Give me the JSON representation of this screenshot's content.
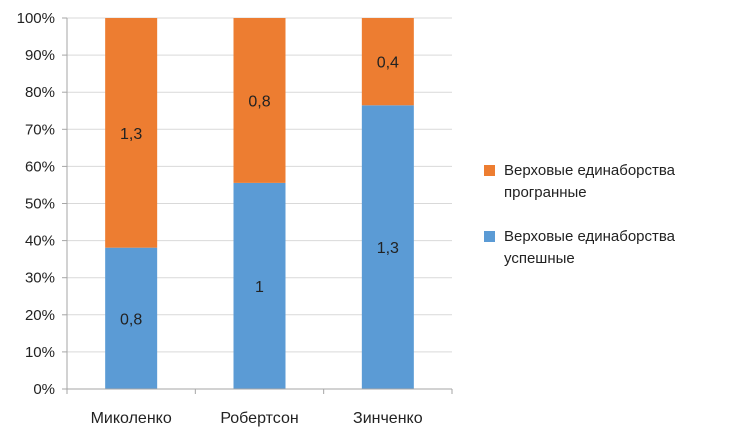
{
  "chart_data": {
    "type": "bar",
    "stacked": true,
    "normalized": true,
    "categories": [
      "Миколенко",
      "Робертсон",
      "Зинченко"
    ],
    "series": [
      {
        "name": "Верховые единаборства успешные",
        "values": [
          0.8,
          1,
          1.3
        ],
        "labels": [
          "0,8",
          "1",
          "1,3"
        ],
        "color": "#5b9bd5"
      },
      {
        "name": "Верховые единаборства програнные",
        "values": [
          1.3,
          0.8,
          0.4
        ],
        "labels": [
          "1,3",
          "0,8",
          "0,4"
        ],
        "color": "#ed7d31"
      }
    ],
    "yticks": [
      "0%",
      "10%",
      "20%",
      "30%",
      "40%",
      "50%",
      "60%",
      "70%",
      "80%",
      "90%",
      "100%"
    ],
    "ylim": [
      0,
      100
    ],
    "grid": true,
    "legend_position": "right",
    "title": "",
    "xlabel": "",
    "ylabel": ""
  },
  "legend": [
    {
      "label": "Верховые единаборства програнные",
      "color": "#ed7d31"
    },
    {
      "label": "Верховые единаборства успешные",
      "color": "#5b9bd5"
    }
  ]
}
